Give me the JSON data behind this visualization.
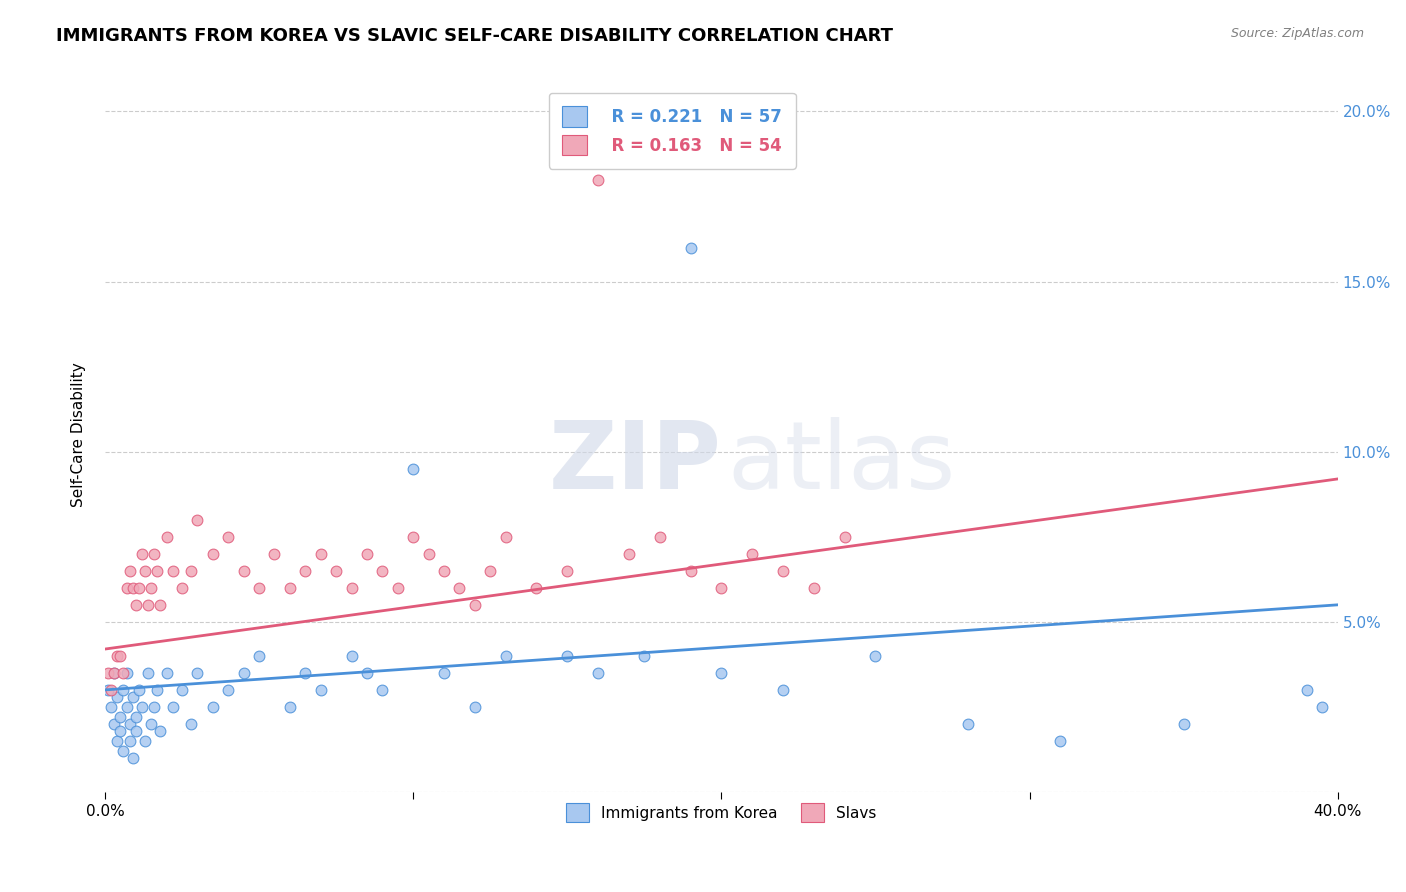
{
  "title": "IMMIGRANTS FROM KOREA VS SLAVIC SELF-CARE DISABILITY CORRELATION CHART",
  "source": "Source: ZipAtlas.com",
  "ylabel": "Self-Care Disability",
  "xlim": [
    0.0,
    0.4
  ],
  "ylim": [
    0.0,
    0.21
  ],
  "x_ticks": [
    0.0,
    0.1,
    0.2,
    0.3,
    0.4
  ],
  "y_ticks": [
    0.0,
    0.05,
    0.1,
    0.15,
    0.2
  ],
  "legend_R_blue": "R = 0.221",
  "legend_N_blue": "N = 57",
  "legend_R_pink": "R = 0.163",
  "legend_N_pink": "N = 54",
  "blue_color": "#a8c8f0",
  "pink_color": "#f0a8b8",
  "blue_line_color": "#4a90d9",
  "pink_line_color": "#e05a7a",
  "legend_blue_text_color": "#4a90d9",
  "legend_pink_text_color": "#e05a7a",
  "right_tick_color": "#4a90d9",
  "blue_scatter_x": [
    0.001,
    0.002,
    0.003,
    0.003,
    0.004,
    0.004,
    0.005,
    0.005,
    0.006,
    0.006,
    0.007,
    0.007,
    0.008,
    0.008,
    0.009,
    0.009,
    0.01,
    0.01,
    0.011,
    0.012,
    0.013,
    0.014,
    0.015,
    0.016,
    0.017,
    0.018,
    0.02,
    0.022,
    0.025,
    0.028,
    0.03,
    0.035,
    0.04,
    0.045,
    0.05,
    0.06,
    0.065,
    0.07,
    0.08,
    0.085,
    0.09,
    0.1,
    0.11,
    0.12,
    0.13,
    0.15,
    0.16,
    0.175,
    0.19,
    0.2,
    0.22,
    0.25,
    0.28,
    0.31,
    0.35,
    0.39,
    0.395
  ],
  "blue_scatter_y": [
    0.03,
    0.025,
    0.02,
    0.035,
    0.015,
    0.028,
    0.022,
    0.018,
    0.03,
    0.012,
    0.025,
    0.035,
    0.02,
    0.015,
    0.028,
    0.01,
    0.022,
    0.018,
    0.03,
    0.025,
    0.015,
    0.035,
    0.02,
    0.025,
    0.03,
    0.018,
    0.035,
    0.025,
    0.03,
    0.02,
    0.035,
    0.025,
    0.03,
    0.035,
    0.04,
    0.025,
    0.035,
    0.03,
    0.04,
    0.035,
    0.03,
    0.095,
    0.035,
    0.025,
    0.04,
    0.04,
    0.035,
    0.04,
    0.16,
    0.035,
    0.03,
    0.04,
    0.02,
    0.015,
    0.02,
    0.03,
    0.025
  ],
  "pink_scatter_x": [
    0.001,
    0.002,
    0.003,
    0.004,
    0.005,
    0.006,
    0.007,
    0.008,
    0.009,
    0.01,
    0.011,
    0.012,
    0.013,
    0.014,
    0.015,
    0.016,
    0.017,
    0.018,
    0.02,
    0.022,
    0.025,
    0.028,
    0.03,
    0.035,
    0.04,
    0.045,
    0.05,
    0.055,
    0.06,
    0.065,
    0.07,
    0.075,
    0.08,
    0.085,
    0.09,
    0.095,
    0.1,
    0.105,
    0.11,
    0.115,
    0.12,
    0.125,
    0.13,
    0.14,
    0.15,
    0.16,
    0.17,
    0.18,
    0.19,
    0.2,
    0.21,
    0.22,
    0.23,
    0.24
  ],
  "pink_scatter_y": [
    0.035,
    0.03,
    0.035,
    0.04,
    0.04,
    0.035,
    0.06,
    0.065,
    0.06,
    0.055,
    0.06,
    0.07,
    0.065,
    0.055,
    0.06,
    0.07,
    0.065,
    0.055,
    0.075,
    0.065,
    0.06,
    0.065,
    0.08,
    0.07,
    0.075,
    0.065,
    0.06,
    0.07,
    0.06,
    0.065,
    0.07,
    0.065,
    0.06,
    0.07,
    0.065,
    0.06,
    0.075,
    0.07,
    0.065,
    0.06,
    0.055,
    0.065,
    0.075,
    0.06,
    0.065,
    0.18,
    0.07,
    0.075,
    0.065,
    0.06,
    0.07,
    0.065,
    0.06,
    0.075
  ],
  "blue_trend_x": [
    0.0,
    0.4
  ],
  "blue_trend_y": [
    0.03,
    0.055
  ],
  "pink_trend_x": [
    0.0,
    0.4
  ],
  "pink_trend_y": [
    0.042,
    0.092
  ],
  "background_color": "#ffffff",
  "grid_color": "#cccccc",
  "title_fontsize": 13,
  "axis_fontsize": 11
}
